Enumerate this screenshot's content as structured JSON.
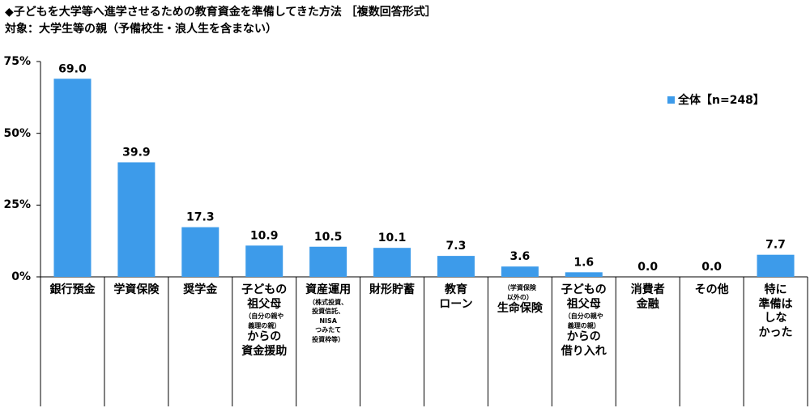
{
  "title": "◆子どもを大学等へ進学させるための教育資金を準備してきた方法 ［複数回答形式］",
  "subtitle": "対象：大学生等の親（予備校生・浪人生を含まない）",
  "chart_data": {
    "type": "bar",
    "categories": [
      "銀行預金",
      "学資保険",
      "奨学金",
      "子どもの祖父母（自分の親や義理の親）からの資金援助",
      "資産運用（株式投資、投資信託、NISA つみたて投資枠等）",
      "財形貯蓄",
      "教育ローン",
      "（学資保険以外の）生命保険",
      "子どもの祖父母（自分の親や義理の親）からの借り入れ",
      "消費者金融",
      "その他",
      "特に準備はしなかった"
    ],
    "category_labels": [
      [
        {
          "t": "銀行預金",
          "s": false
        }
      ],
      [
        {
          "t": "学資保険",
          "s": false
        }
      ],
      [
        {
          "t": "奨学金",
          "s": false
        }
      ],
      [
        {
          "t": "子どもの",
          "s": false
        },
        {
          "t": "祖父母",
          "s": false
        },
        {
          "t": "（自分の親や",
          "s": true
        },
        {
          "t": "義理の親）",
          "s": true
        },
        {
          "t": "からの",
          "s": false
        },
        {
          "t": "資金援助",
          "s": false
        }
      ],
      [
        {
          "t": "資産運用",
          "s": false
        },
        {
          "t": "（株式投資、",
          "s": true
        },
        {
          "t": "投資信託、",
          "s": true
        },
        {
          "t": "NISA",
          "s": true
        },
        {
          "t": "つみたて",
          "s": true
        },
        {
          "t": "投資枠等）",
          "s": true
        }
      ],
      [
        {
          "t": "財形貯蓄",
          "s": false
        }
      ],
      [
        {
          "t": "教育",
          "s": false
        },
        {
          "t": "ローン",
          "s": false
        }
      ],
      [
        {
          "t": "（学資保険",
          "s": true
        },
        {
          "t": "以外の）",
          "s": true
        },
        {
          "t": "生命保険",
          "s": false
        }
      ],
      [
        {
          "t": "子どもの",
          "s": false
        },
        {
          "t": "祖父母",
          "s": false
        },
        {
          "t": "（自分の親や",
          "s": true
        },
        {
          "t": "義理の親）",
          "s": true
        },
        {
          "t": "からの",
          "s": false
        },
        {
          "t": "借り入れ",
          "s": false
        }
      ],
      [
        {
          "t": "消費者",
          "s": false
        },
        {
          "t": "金融",
          "s": false
        }
      ],
      [
        {
          "t": "その他",
          "s": false
        }
      ],
      [
        {
          "t": "特に",
          "s": false
        },
        {
          "t": "準備は",
          "s": false
        },
        {
          "t": "しな",
          "s": false
        },
        {
          "t": "かった",
          "s": false
        }
      ]
    ],
    "series": [
      {
        "name": "全体【n=248】",
        "values": [
          69.0,
          39.9,
          17.3,
          10.9,
          10.5,
          10.1,
          7.3,
          3.6,
          1.6,
          0.0,
          0.0,
          7.7
        ],
        "value_labels": [
          "69.0",
          "39.9",
          "17.3",
          "10.9",
          "10.5",
          "10.1",
          "7.3",
          "3.6",
          "1.6",
          "0.0",
          "0.0",
          "7.7"
        ]
      }
    ],
    "ylim": [
      0,
      75
    ],
    "yticks": [
      0,
      25,
      50,
      75
    ],
    "ytick_labels": [
      "0%",
      "25%",
      "50%",
      "75%"
    ],
    "xlabel": "",
    "ylabel": "",
    "legend_position": "right",
    "grid": false,
    "bar_color": "#3d9bea"
  }
}
